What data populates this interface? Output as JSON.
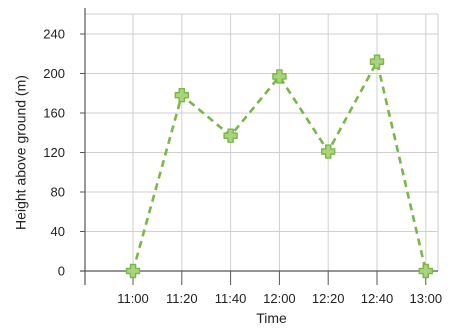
{
  "chart_data": {
    "type": "line",
    "xlabel": "Time",
    "ylabel": "Height above ground (m)",
    "categories": [
      "11:00",
      "11:20",
      "11:40",
      "12:00",
      "12:20",
      "12:40",
      "13:00"
    ],
    "series": [
      {
        "values": [
          0,
          178,
          137,
          197,
          121,
          212,
          0
        ]
      }
    ],
    "ylim": [
      0,
      240
    ],
    "yticks": [
      0,
      40,
      80,
      120,
      160,
      200,
      240
    ],
    "grid": true,
    "line_style": "dashed",
    "marker": "plus",
    "colors": {
      "series": "#7ab648",
      "marker_fill": "#a9d47c",
      "grid": "#cfcfcf",
      "axis": "#555555"
    }
  }
}
